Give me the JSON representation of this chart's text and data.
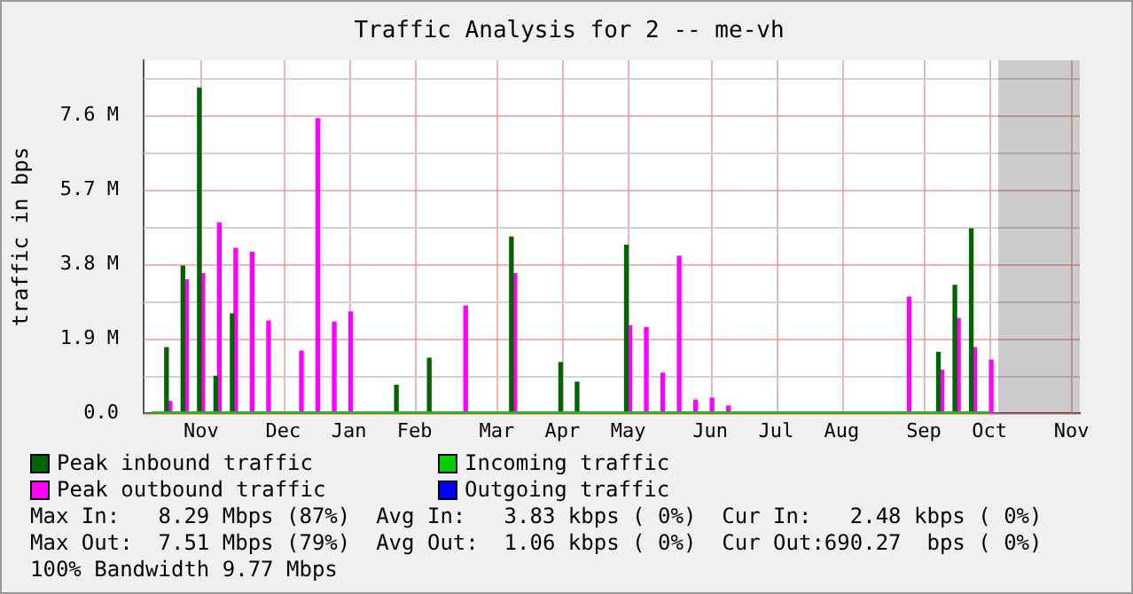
{
  "chart_data": {
    "type": "bar",
    "title": "Traffic Analysis for 2 -- me-vh",
    "ylabel": "traffic in bps",
    "categories": [
      null,
      null,
      null,
      "Nov",
      null,
      null,
      null,
      null,
      "Dec",
      null,
      null,
      null,
      "Jan",
      null,
      null,
      null,
      "Feb",
      null,
      null,
      null,
      null,
      "Mar",
      null,
      null,
      null,
      "Apr",
      null,
      null,
      null,
      "May",
      null,
      null,
      null,
      null,
      "Jun",
      null,
      null,
      null,
      "Jul",
      null,
      null,
      null,
      "Aug",
      null,
      null,
      null,
      null,
      "Sep",
      null,
      null,
      null,
      "Oct",
      null,
      null,
      null,
      null,
      "Nov"
    ],
    "ylim": [
      0,
      9
    ],
    "yticks": [
      {
        "value": 0,
        "label": "0.0"
      },
      {
        "value": 0.95,
        "label": null
      },
      {
        "value": 1.9,
        "label": "1.9 M"
      },
      {
        "value": 2.85,
        "label": null
      },
      {
        "value": 3.8,
        "label": "3.8 M"
      },
      {
        "value": 4.75,
        "label": null
      },
      {
        "value": 5.7,
        "label": "5.7 M"
      },
      {
        "value": 6.65,
        "label": null
      },
      {
        "value": 7.6,
        "label": "7.6 M"
      },
      {
        "value": 8.55,
        "label": null
      }
    ],
    "grid": true,
    "legend": "bottom",
    "series": [
      {
        "name": "Peak inbound traffic",
        "color": "#006400",
        "values": [
          0,
          1.67,
          3.75,
          8.29,
          0.94,
          2.53,
          0,
          0,
          0,
          0,
          0,
          0,
          0,
          0,
          0,
          0.71,
          0,
          1.4,
          0,
          0,
          0,
          0,
          4.49,
          0,
          0,
          1.29,
          0.79,
          0,
          0,
          4.28,
          0,
          0,
          0,
          0,
          0,
          0,
          0,
          0,
          0,
          0,
          0,
          0,
          0,
          0,
          0,
          0,
          0,
          0,
          1.55,
          3.26,
          4.7,
          0,
          null,
          null,
          null,
          null,
          null
        ]
      },
      {
        "name": "Incoming traffic",
        "type": "line",
        "color": "#00cc00",
        "values": [
          0,
          0,
          0,
          0,
          0,
          0,
          0,
          0,
          0,
          0,
          0,
          0,
          0,
          0,
          0,
          0,
          0,
          0,
          0,
          0,
          0,
          0,
          0,
          0,
          0,
          0,
          0,
          0,
          0,
          0,
          0,
          0,
          0,
          0,
          0,
          0,
          0,
          0,
          0,
          0,
          0,
          0,
          0,
          0,
          0,
          0,
          0,
          0,
          0,
          0,
          0,
          0,
          null,
          null,
          null,
          null,
          null
        ]
      },
      {
        "name": "Peak outbound traffic",
        "color": "#ff00ff",
        "values": [
          0,
          0.3,
          3.4,
          3.56,
          4.85,
          4.2,
          4.1,
          2.35,
          0,
          1.58,
          7.51,
          2.32,
          2.58,
          0,
          0,
          0,
          0,
          0,
          0,
          2.73,
          0,
          0,
          3.56,
          0,
          0,
          0,
          0,
          0,
          0,
          2.23,
          2.18,
          1.02,
          4.0,
          0.33,
          0.38,
          0.18,
          0,
          0,
          0,
          0,
          0,
          0,
          0,
          0,
          0,
          0,
          2.96,
          0,
          1.09,
          2.41,
          1.67,
          1.35,
          null,
          null,
          null,
          null,
          null
        ]
      },
      {
        "name": "Outgoing traffic",
        "type": "line",
        "color": "#0000ff",
        "values": [
          null,
          null,
          null,
          null,
          null,
          null,
          null,
          null,
          null,
          null,
          null,
          null,
          null,
          null,
          null,
          null,
          null,
          null,
          null,
          null,
          null,
          null,
          null,
          null,
          null,
          null,
          null,
          null,
          null,
          null,
          null,
          null,
          null,
          null,
          null,
          null,
          null,
          null,
          null,
          null,
          null,
          null,
          null,
          null,
          null,
          null,
          null,
          null,
          null,
          null,
          null,
          null,
          null,
          null,
          null,
          null,
          null
        ]
      }
    ],
    "annotations": [
      "Max In:   8.29 Mbps (87%)  Avg In:   3.83 kbps ( 0%)  Cur In:   2.48 kbps ( 0%)",
      "Max Out:  7.51 Mbps (79%)  Avg Out:  1.06 kbps ( 0%)  Cur Out:690.27  bps ( 0%)",
      "100% Bandwidth 9.77 Mbps"
    ]
  }
}
